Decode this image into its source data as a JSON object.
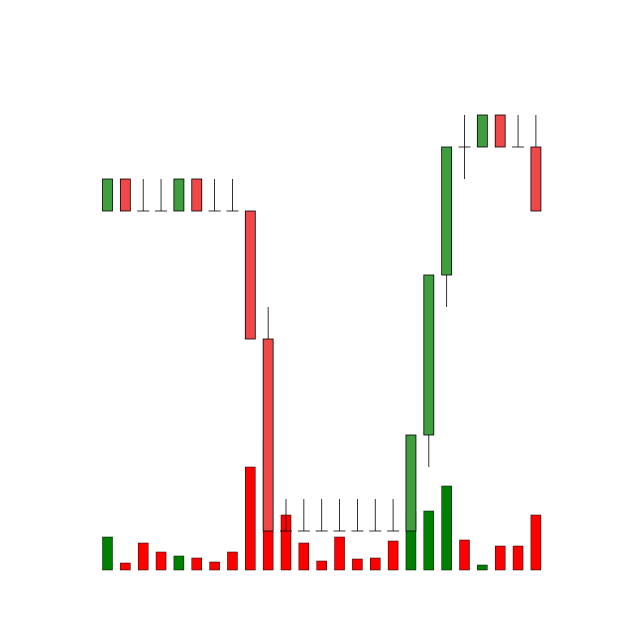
{
  "chart_data": {
    "type": "candlestick",
    "open": [
      12,
      13,
      12,
      12,
      12,
      13,
      12,
      12,
      12,
      8,
      2,
      2,
      2,
      2,
      2,
      2,
      2,
      2,
      5,
      10,
      14,
      14,
      15,
      14,
      14
    ],
    "high": [
      13,
      13,
      13,
      13,
      13,
      13,
      13,
      13,
      12,
      9,
      3,
      3,
      3,
      3,
      3,
      3,
      3,
      5,
      10,
      14,
      15,
      15,
      15,
      15,
      15
    ],
    "low": [
      12,
      12,
      12,
      12,
      12,
      12,
      12,
      12,
      8,
      2,
      2,
      2,
      2,
      2,
      2,
      2,
      2,
      2,
      4,
      9,
      13,
      14,
      14,
      14,
      12
    ],
    "close": [
      13,
      12,
      12,
      12,
      13,
      12,
      12,
      12,
      8,
      2,
      2,
      2,
      2,
      2,
      2,
      2,
      2,
      5,
      10,
      14,
      14,
      15,
      14,
      14,
      12
    ],
    "volume": [
      33,
      7,
      27,
      18,
      14,
      12,
      8,
      18,
      103,
      129,
      55,
      27,
      9,
      33,
      11,
      12,
      29,
      58,
      59,
      84,
      30,
      5,
      24,
      24,
      55
    ],
    "ylim": [
      0,
      17.5
    ],
    "y2lim": [
      0,
      570
    ],
    "up_color": "#3f9f3f",
    "down_color": "#f04848",
    "volume_up_color": "#008000",
    "volume_down_color": "#ff0000"
  }
}
